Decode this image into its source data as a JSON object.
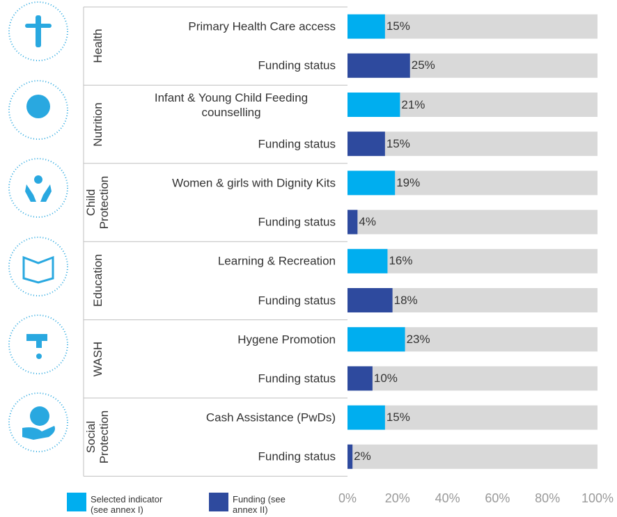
{
  "chart_data": {
    "type": "bar",
    "orientation": "horizontal",
    "groups": [
      "Health",
      "Nutrition",
      "Child Protection",
      "Education",
      "WASH",
      "Social Protection"
    ],
    "categories": [
      "Primary Health Care access",
      "Funding status",
      "Infant & Young Child Feeding counselling",
      "Funding status",
      "Women & girls with Dignity Kits",
      "Funding status",
      "Learning & Recreation",
      "Funding status",
      "Hygene Promotion",
      "Funding status",
      "Cash Assistance (PwDs)",
      "Funding status"
    ],
    "series": [
      {
        "name": "Selected indicator (see annex I)",
        "color": "#00aeef",
        "values": [
          15,
          null,
          21,
          null,
          19,
          null,
          16,
          null,
          23,
          null,
          15,
          null
        ],
        "value_labels": [
          "15%",
          null,
          "21%",
          null,
          "19%",
          null,
          "16%",
          null,
          "23%",
          null,
          "15%",
          null
        ]
      },
      {
        "name": "Funding (see annex II)",
        "color": "#2e4a9e",
        "values": [
          null,
          25,
          null,
          15,
          null,
          4,
          null,
          18,
          null,
          10,
          null,
          2
        ],
        "value_labels": [
          null,
          "25%",
          null,
          "15%",
          null,
          "4%",
          null,
          "18%",
          null,
          "10%",
          null,
          "2%"
        ]
      }
    ],
    "track_color": "#d9d9d9",
    "xlim": [
      0,
      100
    ],
    "xticks": [
      {
        "value": 0,
        "label": "0%"
      },
      {
        "value": 20,
        "label": "20%"
      },
      {
        "value": 40,
        "label": "40%"
      },
      {
        "value": 60,
        "label": "60%"
      },
      {
        "value": 80,
        "label": "80%"
      },
      {
        "value": 100,
        "label": "100%"
      }
    ],
    "grid": false
  }
}
